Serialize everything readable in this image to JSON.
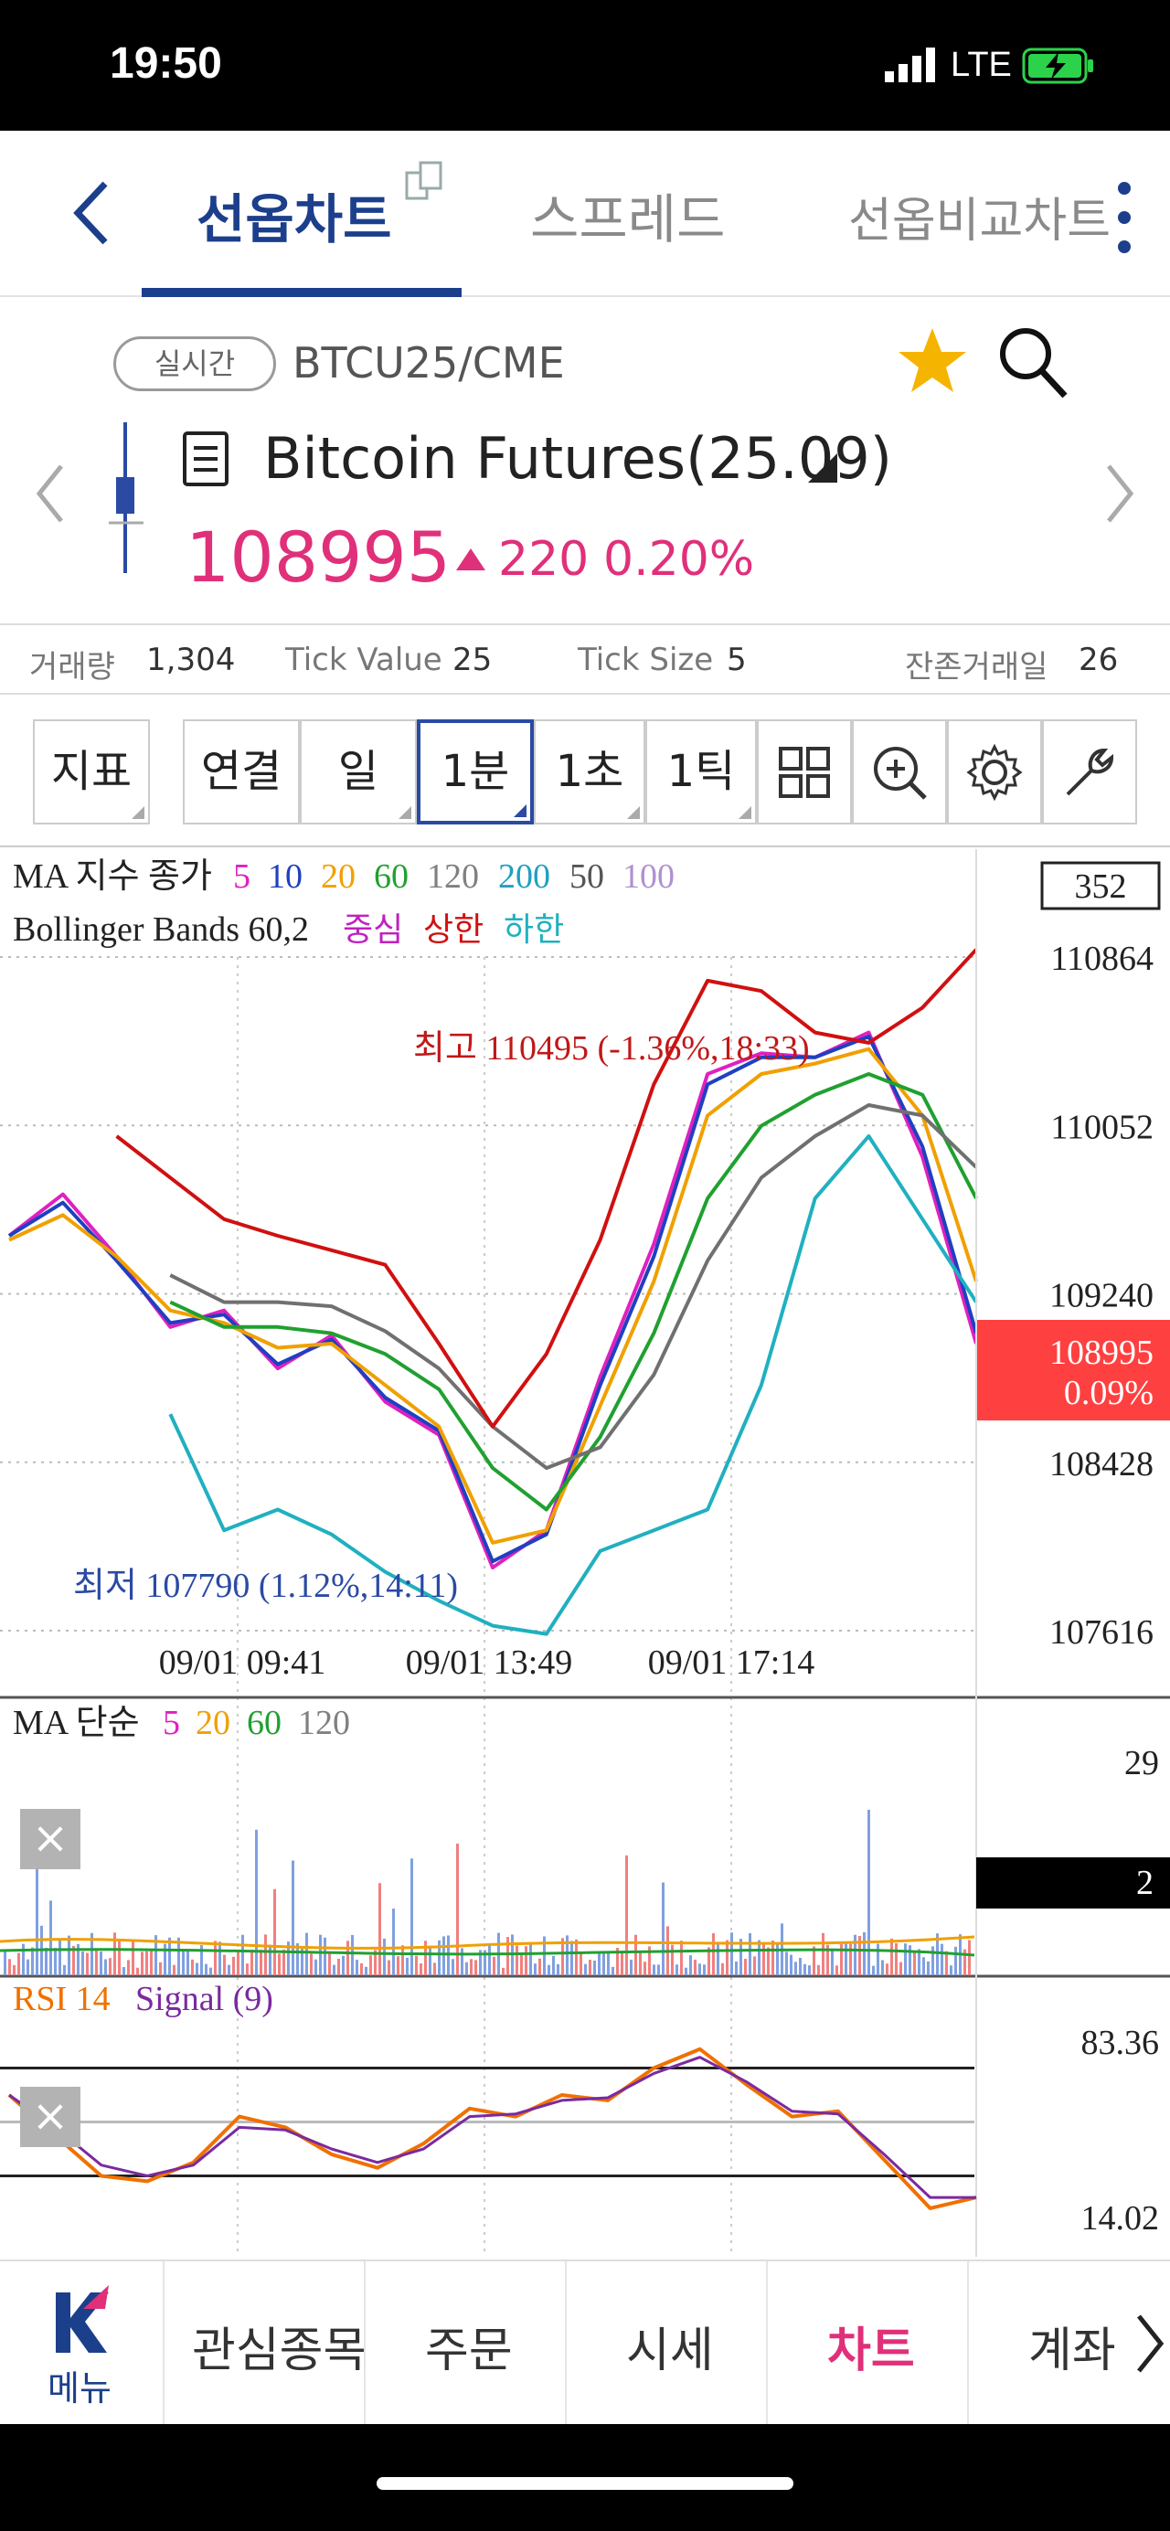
{
  "status_bar": {
    "time": "19:50",
    "network": "LTE"
  },
  "tabs": [
    {
      "label": "선옵차트",
      "active": true
    },
    {
      "label": "스프레드",
      "active": false
    },
    {
      "label": "선옵비교차트",
      "active": false
    }
  ],
  "instrument": {
    "realtime_label": "실시간",
    "code": "BTCU25/CME",
    "name": "Bitcoin Futures(25.09)",
    "price": "108995",
    "change": "220",
    "change_pct": "0.20%"
  },
  "info": {
    "volume_label": "거래량",
    "volume": "1,304",
    "tick_value_label": "Tick Value",
    "tick_value": "25",
    "tick_size_label": "Tick Size",
    "tick_size": "5",
    "days_label": "잔존거래일",
    "days": "26"
  },
  "toolbar": {
    "indicator": "지표",
    "link": "연결",
    "period": "일",
    "minute": "1분",
    "second": "1초",
    "tick": "1틱"
  },
  "colors": {
    "accent": "#1c3f8c",
    "up": "#e0307a",
    "current_price_box": "#ff4040"
  },
  "chart_data": [
    {
      "type": "line",
      "panel": "price",
      "legend_ma": {
        "label": "MA 지수 종가",
        "periods": [
          "5",
          "10",
          "20",
          "60",
          "120",
          "200",
          "50",
          "100"
        ]
      },
      "legend_bb": {
        "label": "Bollinger Bands 60,2",
        "mid": "중심",
        "upper": "상한",
        "lower": "하한"
      },
      "y_ticks": [
        "110864",
        "110052",
        "109240",
        "108428",
        "107616"
      ],
      "ylim": [
        107616,
        110864
      ],
      "x_ticks": [
        "09/01 09:41",
        "09/01 13:49",
        "09/01 17:14"
      ],
      "top_box": "352",
      "current": {
        "price": "108995",
        "pct": "0.09%"
      },
      "annotation_high": "최고 110495 (-1.36%,18:33)",
      "annotation_low": "최저 107790 (1.12%,14:11)",
      "series": [
        {
          "name": "5",
          "color": "#e020c0",
          "values": [
            109520,
            109720,
            109420,
            109080,
            109160,
            108880,
            109040,
            108720,
            108560,
            107920,
            108100,
            108840,
            109480,
            110300,
            110400,
            110380,
            110500,
            109900,
            109000
          ]
        },
        {
          "name": "10",
          "color": "#2040c0",
          "values": [
            109520,
            109680,
            109400,
            109100,
            109140,
            108900,
            109020,
            108740,
            108580,
            107950,
            108080,
            108800,
            109420,
            110250,
            110380,
            110380,
            110480,
            109950,
            109050
          ]
        },
        {
          "name": "20",
          "color": "#f0a000",
          "values": [
            109500,
            109620,
            109420,
            109160,
            109100,
            108980,
            109000,
            108800,
            108600,
            108040,
            108100,
            108700,
            109300,
            110100,
            110300,
            110350,
            110420,
            110100,
            109300
          ]
        },
        {
          "name": "60",
          "color": "#20a030",
          "values": [
            null,
            null,
            null,
            109200,
            109080,
            109080,
            109050,
            108950,
            108780,
            108400,
            108200,
            108550,
            109050,
            109700,
            110050,
            110200,
            110300,
            110200,
            109700
          ]
        },
        {
          "name": "120",
          "color": "#707070",
          "values": [
            null,
            null,
            null,
            109330,
            109200,
            109200,
            109180,
            109060,
            108880,
            108600,
            108400,
            108500,
            108850,
            109400,
            109800,
            110000,
            110150,
            110100,
            109850
          ]
        },
        {
          "name": "Bollinger Upper",
          "color": "#d01010",
          "values": [
            null,
            null,
            110000,
            109800,
            109600,
            109520,
            109450,
            109380,
            109000,
            108600,
            108950,
            109500,
            110250,
            110750,
            110700,
            110500,
            110450,
            110620,
            110900
          ]
        },
        {
          "name": "Bollinger Lower",
          "color": "#20b0c0",
          "values": [
            null,
            null,
            null,
            108660,
            108100,
            108200,
            108080,
            107900,
            107760,
            107640,
            107600,
            108000,
            108100,
            108200,
            108800,
            109700,
            110000,
            109600,
            109200
          ]
        }
      ]
    },
    {
      "type": "bar",
      "panel": "volume",
      "legend_ma": {
        "label": "MA 단순",
        "periods": [
          "5",
          "20",
          "60",
          "120"
        ]
      },
      "y_ticks": [
        "29"
      ],
      "current": "2"
    },
    {
      "type": "line",
      "panel": "rsi",
      "legend": {
        "rsi": "RSI 14",
        "signal": "Signal (9)"
      },
      "y_ticks": [
        "83.36",
        "14.02"
      ],
      "series": [
        {
          "name": "RSI 14",
          "color": "#f07000",
          "values": [
            60,
            45,
            30,
            28,
            35,
            52,
            48,
            38,
            33,
            42,
            55,
            52,
            60,
            58,
            70,
            77,
            64,
            52,
            54,
            36,
            18,
            22
          ]
        },
        {
          "name": "Signal (9)",
          "color": "#7a2aa0",
          "values": [
            60,
            48,
            34,
            30,
            34,
            48,
            47,
            40,
            35,
            40,
            52,
            53,
            58,
            59,
            68,
            74,
            65,
            54,
            53,
            38,
            22,
            22
          ]
        }
      ]
    }
  ],
  "bottom_nav": {
    "menu": "메뉴",
    "items": [
      "관심종목",
      "주문",
      "시세",
      "차트",
      "계좌"
    ]
  }
}
